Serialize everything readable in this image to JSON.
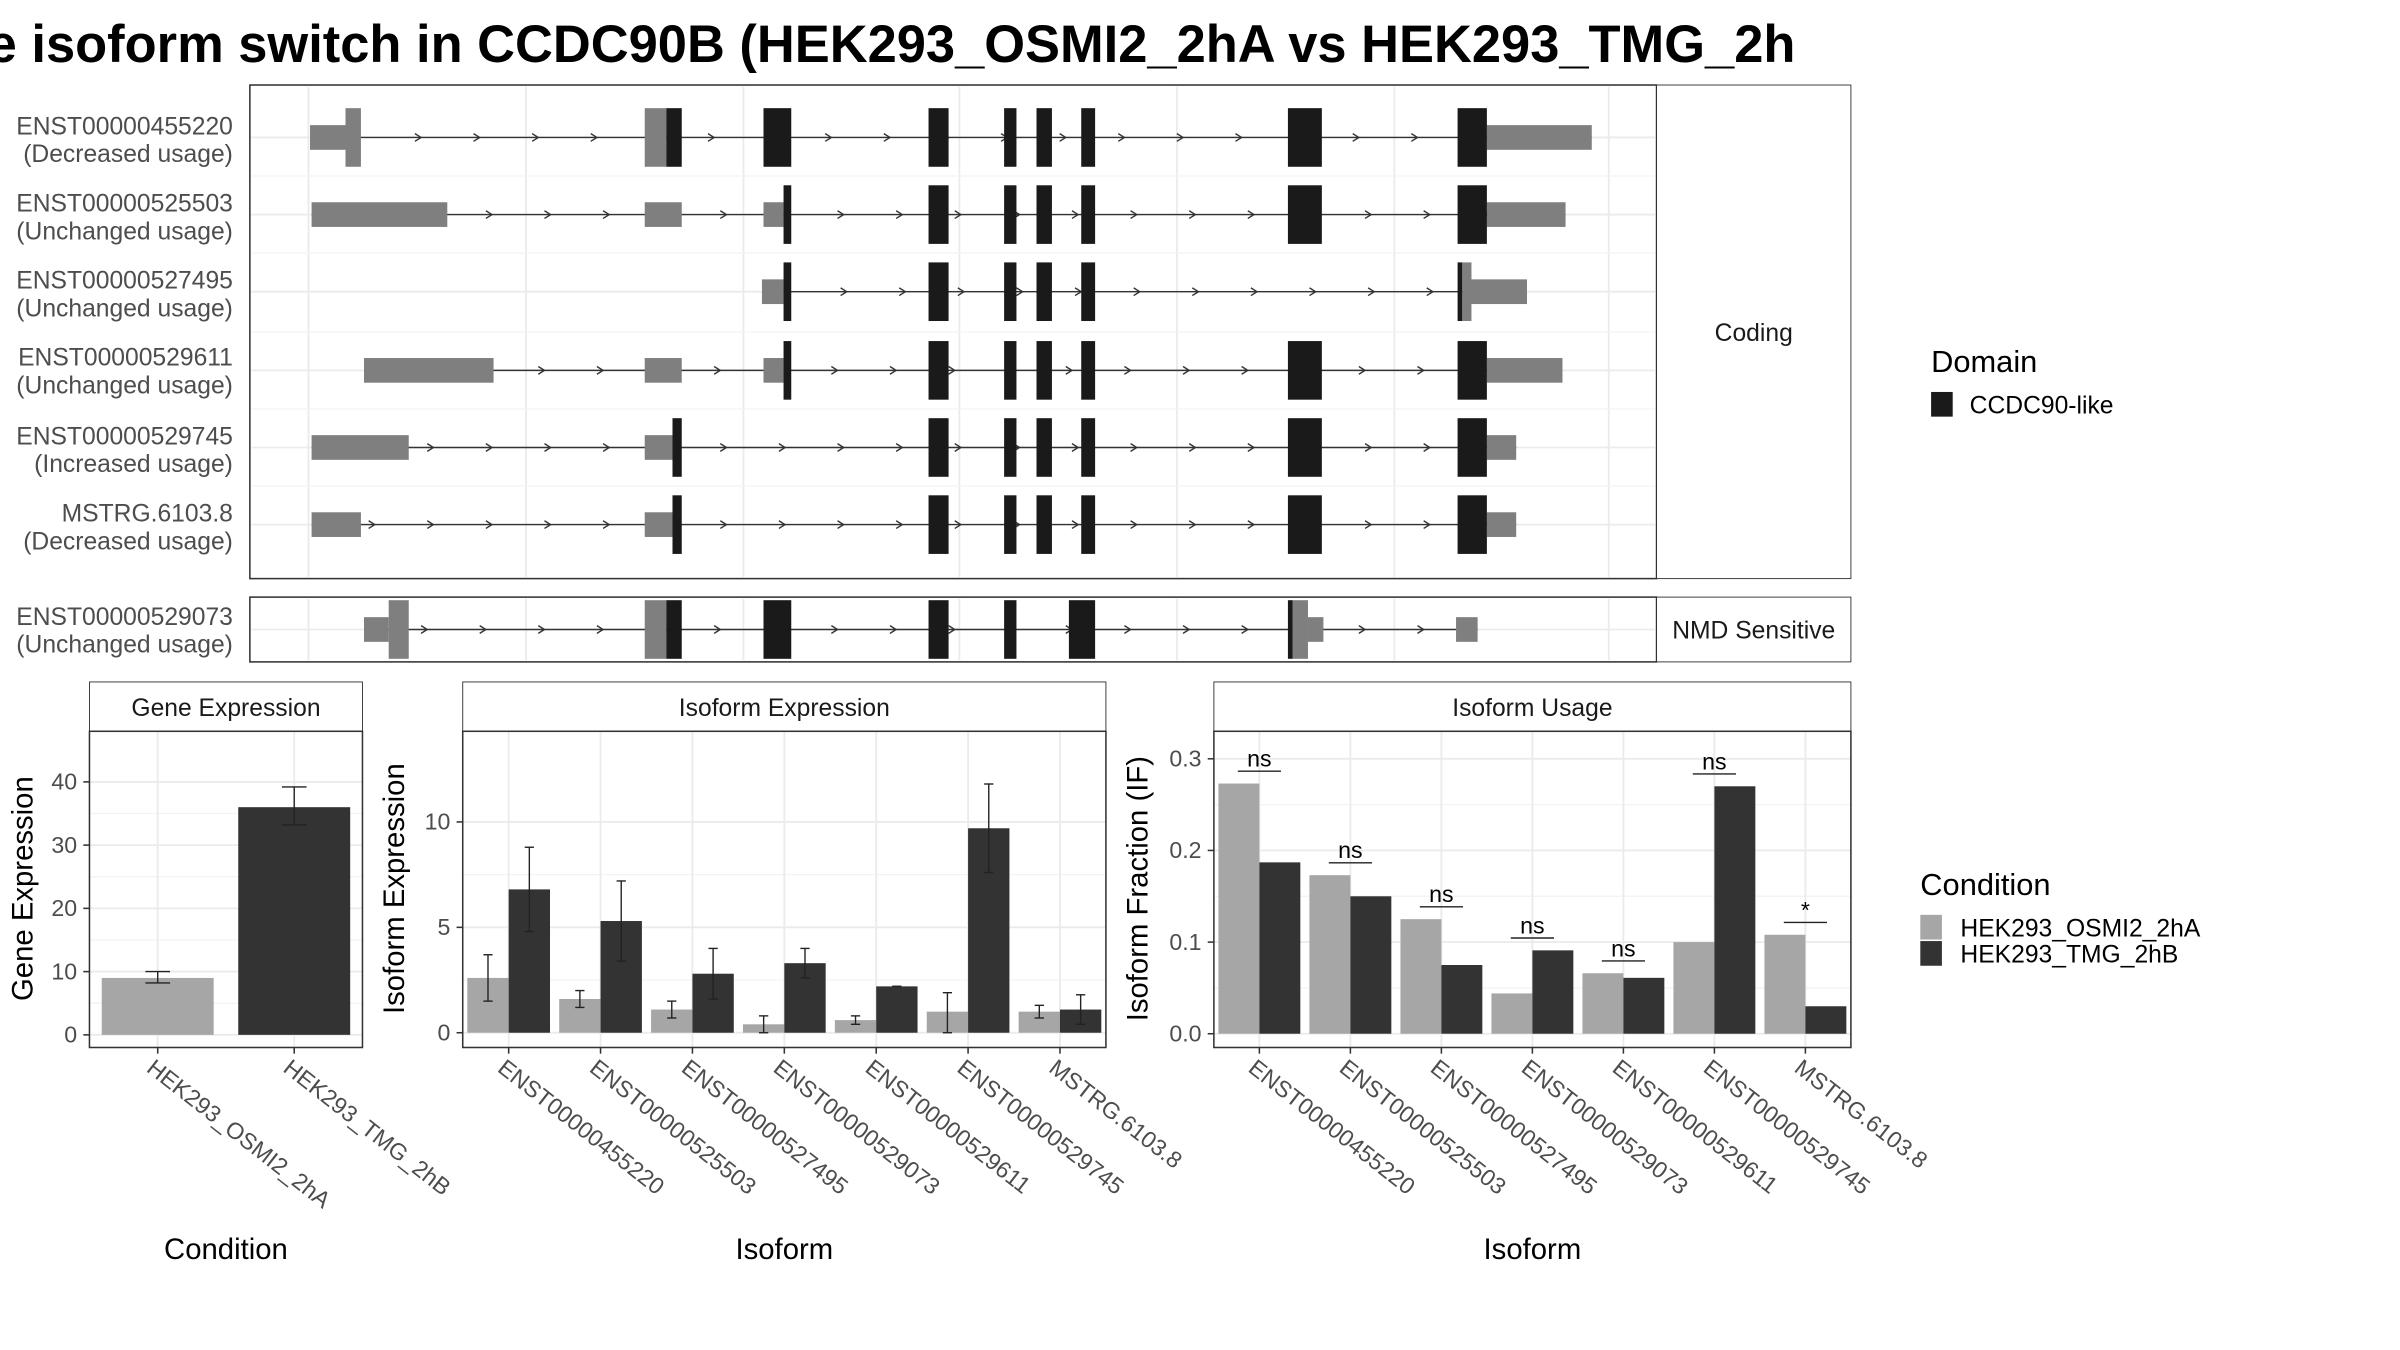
{
  "title": "e isoform switch in CCDC90B (HEK293_OSMI2_2hA vs HEK293_TMG_2h",
  "colors": {
    "domain": "#1a1a1a",
    "utr": "#7f7f7f",
    "cond1": "#a6a6a6",
    "cond2": "#333333",
    "grid": "#ebebeb",
    "frame": "#333333",
    "strip_bg": "#ffffff"
  },
  "transcript_panel": {
    "facets": [
      "Coding",
      "NMD Sensitive"
    ],
    "transcripts": [
      {
        "id": "ENST00000455220",
        "usage": "(Decreased usage)",
        "facet": "Coding"
      },
      {
        "id": "ENST00000525503",
        "usage": "(Unchanged usage)",
        "facet": "Coding"
      },
      {
        "id": "ENST00000527495",
        "usage": "(Unchanged usage)",
        "facet": "Coding"
      },
      {
        "id": "ENST00000529611",
        "usage": "(Unchanged usage)",
        "facet": "Coding"
      },
      {
        "id": "ENST00000529745",
        "usage": "(Increased usage)",
        "facet": "Coding"
      },
      {
        "id": "MSTRG.6103.8",
        "usage": "(Decreased usage)",
        "facet": "Coding"
      },
      {
        "id": "ENST00000529073",
        "usage": "(Unchanged usage)",
        "facet": "NMD Sensitive"
      }
    ],
    "legend_title": "Domain",
    "legend_item": "CCDC90-like"
  },
  "chart_data": [
    {
      "type": "bar",
      "title": "Gene Expression",
      "xlabel": "Condition",
      "ylabel": "Gene Expression",
      "categories": [
        "HEK293_OSMI2_2hA",
        "HEK293_TMG_2hB"
      ],
      "values": [
        9.0,
        36.0
      ],
      "error": [
        [
          8.2,
          10.0
        ],
        [
          33.2,
          39.2
        ]
      ],
      "ylim": [
        -2,
        48
      ],
      "yticks": [
        0,
        10,
        20,
        30,
        40
      ]
    },
    {
      "type": "bar",
      "title": "Isoform Expression",
      "xlabel": "Isoform",
      "ylabel": "Isoform Expression",
      "categories": [
        "ENST00000455220",
        "ENST00000525503",
        "ENST00000527495",
        "ENST00000529073",
        "ENST00000529611",
        "ENST00000529745",
        "MSTRG.6103.8"
      ],
      "series": [
        {
          "name": "HEK293_OSMI2_2hA",
          "values": [
            2.6,
            1.6,
            1.1,
            0.4,
            0.6,
            1.0,
            1.0
          ],
          "error": [
            [
              1.5,
              3.7
            ],
            [
              1.2,
              2.0
            ],
            [
              0.7,
              1.5
            ],
            [
              0.0,
              0.8
            ],
            [
              0.4,
              0.8
            ],
            [
              0.0,
              1.9
            ],
            [
              0.7,
              1.3
            ]
          ]
        },
        {
          "name": "HEK293_TMG_2hB",
          "values": [
            6.8,
            5.3,
            2.8,
            3.3,
            2.2,
            9.7,
            1.1
          ],
          "error": [
            [
              4.8,
              8.8
            ],
            [
              3.4,
              7.2
            ],
            [
              1.6,
              4.0
            ],
            [
              2.6,
              4.0
            ],
            [
              2.2,
              2.2
            ],
            [
              7.6,
              11.8
            ],
            [
              0.4,
              1.8
            ]
          ]
        }
      ],
      "ylim": [
        -0.7,
        14.3
      ],
      "yticks": [
        0,
        5,
        10
      ]
    },
    {
      "type": "bar",
      "title": "Isoform Usage",
      "xlabel": "Isoform",
      "ylabel": "Isoform Fraction (IF)",
      "categories": [
        "ENST00000455220",
        "ENST00000525503",
        "ENST00000527495",
        "ENST00000529073",
        "ENST00000529611",
        "ENST00000529745",
        "MSTRG.6103.8"
      ],
      "series": [
        {
          "name": "HEK293_OSMI2_2hA",
          "values": [
            0.273,
            0.173,
            0.125,
            0.044,
            0.066,
            0.1,
            0.108
          ]
        },
        {
          "name": "HEK293_TMG_2hB",
          "values": [
            0.187,
            0.15,
            0.075,
            0.091,
            0.061,
            0.27,
            0.03
          ]
        }
      ],
      "significance": [
        "ns",
        "ns",
        "ns",
        "ns",
        "ns",
        "ns",
        "*"
      ],
      "ylim": [
        -0.015,
        0.33
      ],
      "yticks": [
        0.0,
        0.1,
        0.2,
        0.3
      ],
      "ytick_labels": [
        "0.0",
        "0.1",
        "0.2",
        "0.3"
      ]
    }
  ],
  "condition_legend": {
    "title": "Condition",
    "items": [
      "HEK293_OSMI2_2hA",
      "HEK293_TMG_2hB"
    ]
  }
}
